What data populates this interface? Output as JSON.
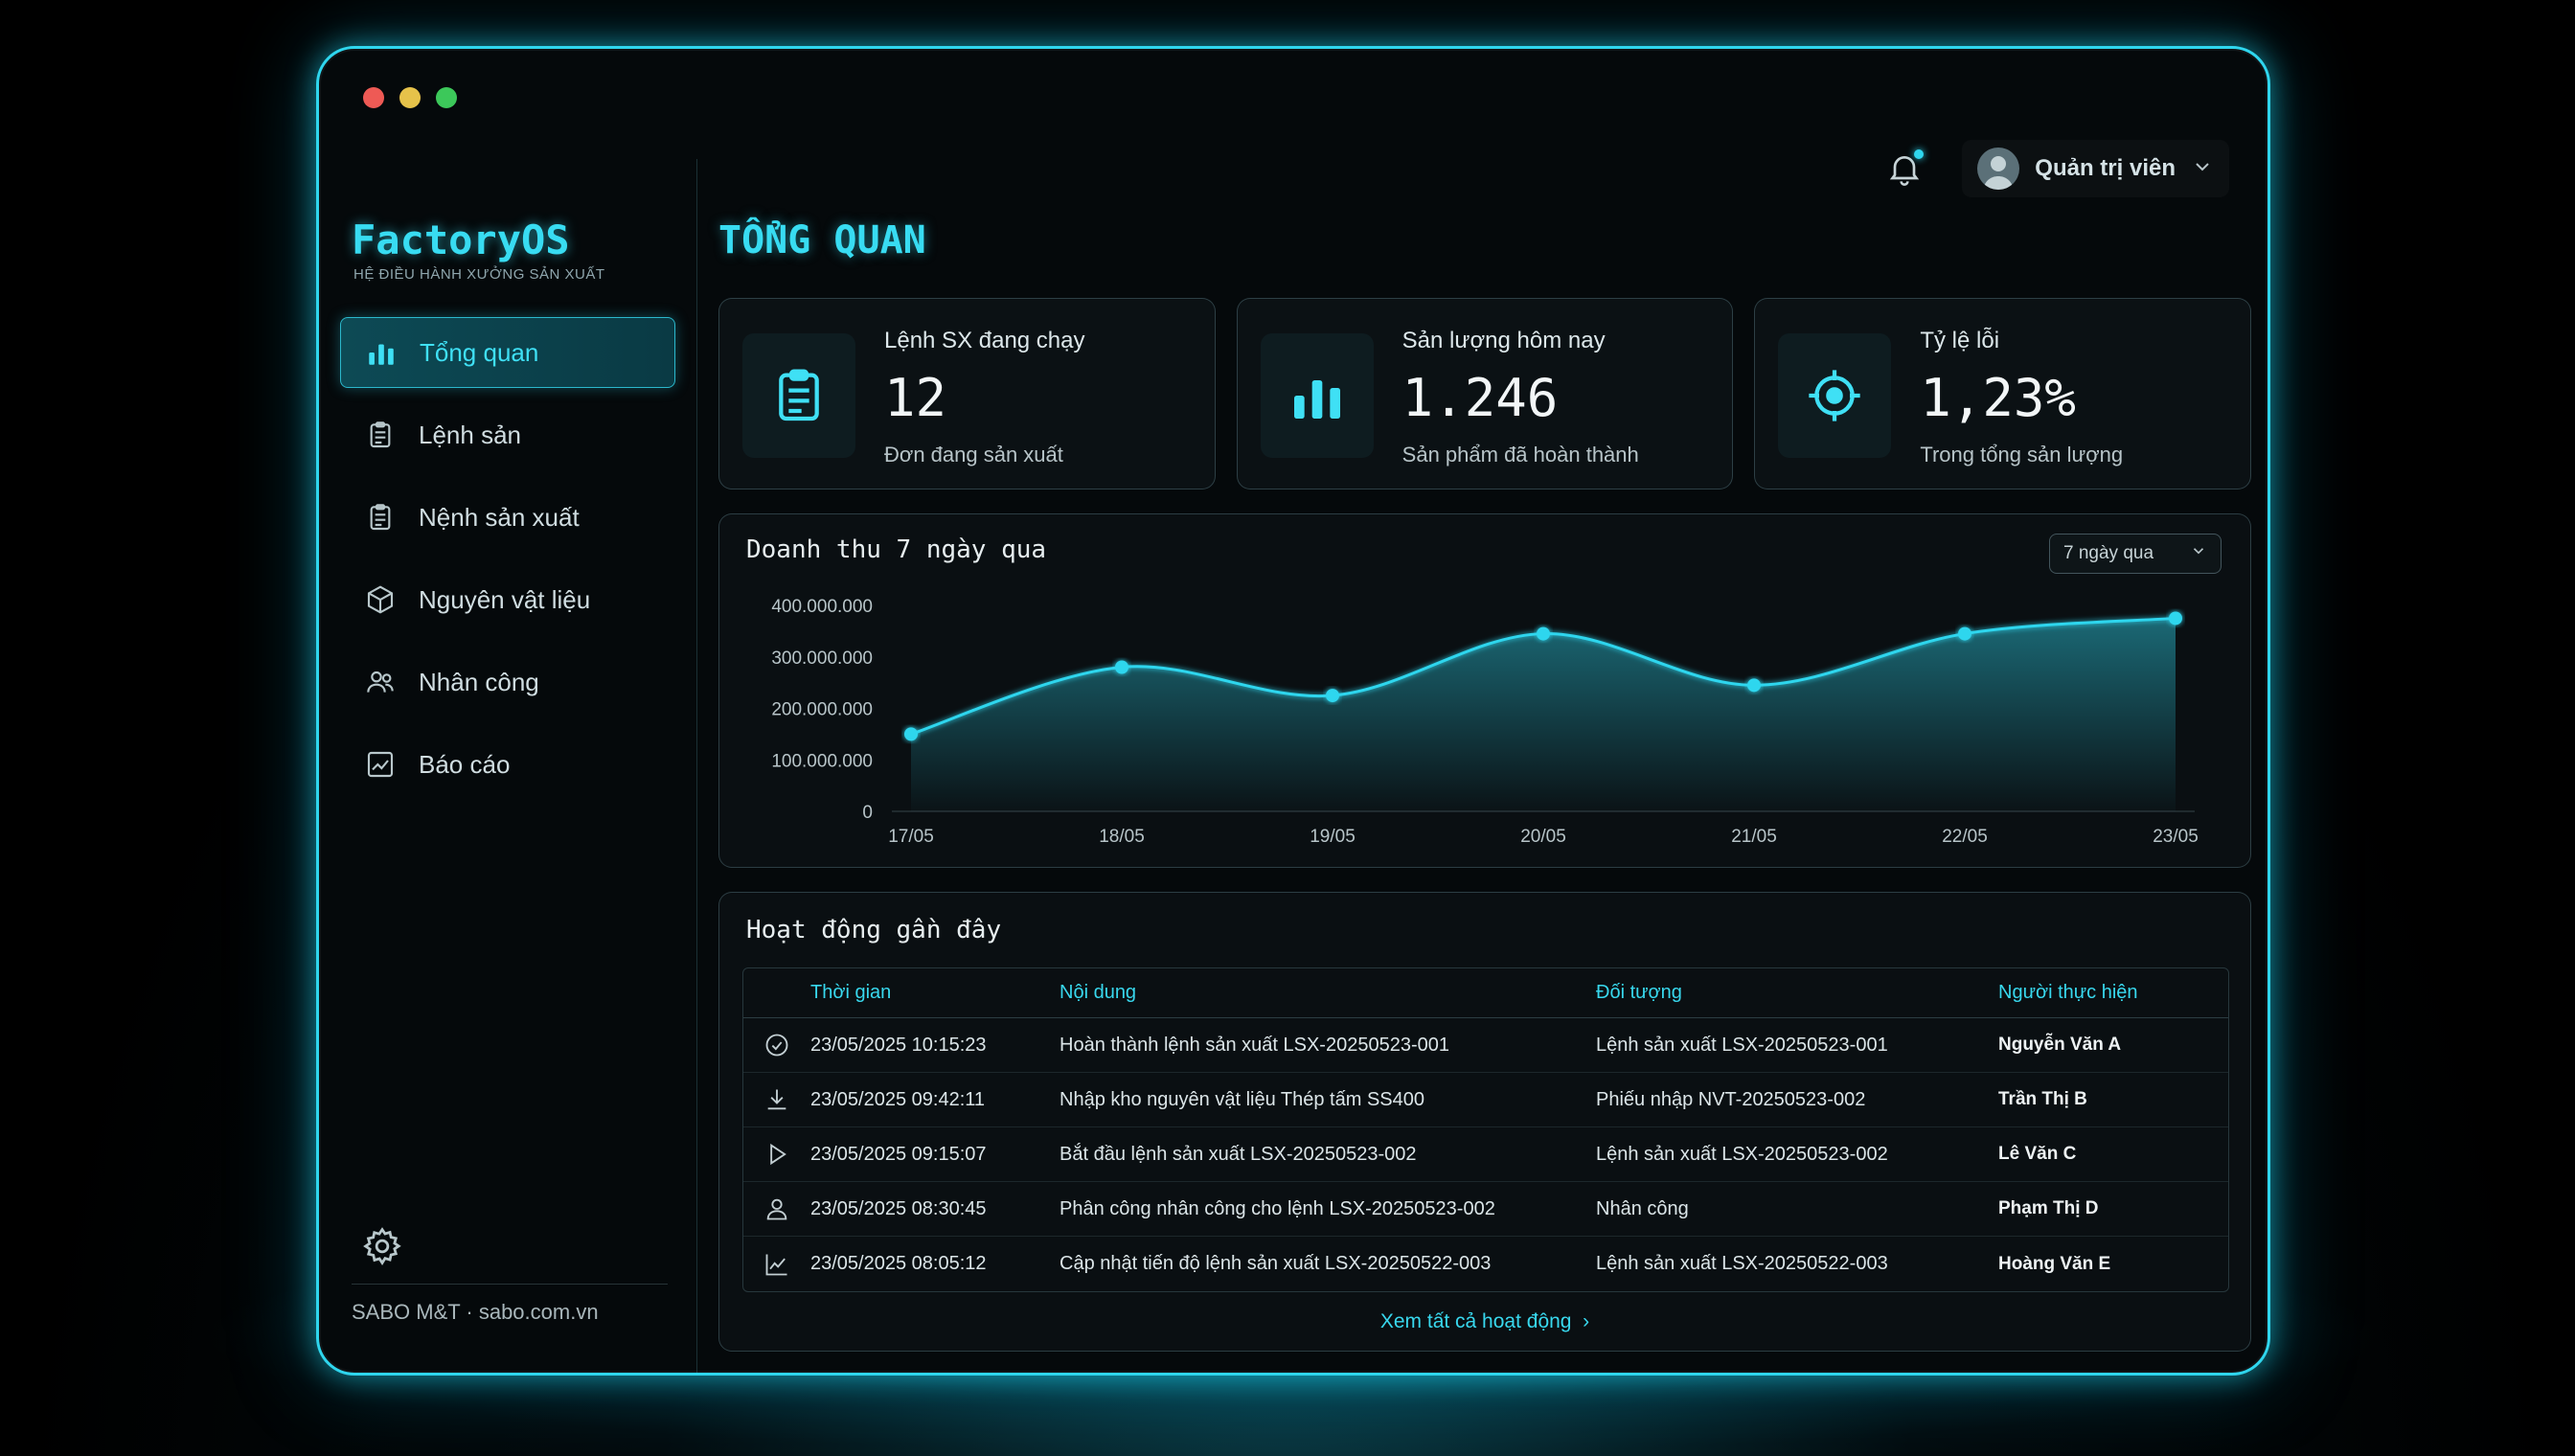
{
  "app": {
    "logo": "FactoryOS",
    "logo_subtitle": "HỆ ĐIỀU HÀNH XƯỞNG SẢN XUẤT",
    "footer": "SABO M&T · sabo.com.vn"
  },
  "topbar": {
    "user_name": "Quản trị viên"
  },
  "sidebar": {
    "items": [
      {
        "label": "Tổng quan",
        "icon": "bar-chart-icon",
        "active": true
      },
      {
        "label": "Lệnh sản",
        "icon": "clipboard-icon",
        "active": false
      },
      {
        "label": "Nệnh sản xuất",
        "icon": "clipboard-icon",
        "active": false
      },
      {
        "label": "Nguyên vật liệu",
        "icon": "cube-icon",
        "active": false
      },
      {
        "label": "Nhân công",
        "icon": "users-icon",
        "active": false
      },
      {
        "label": "Báo cáo",
        "icon": "report-icon",
        "active": false
      }
    ]
  },
  "page": {
    "title": "TỔNG QUAN"
  },
  "cards": [
    {
      "label": "Lệnh SX đang chạy",
      "value": "12",
      "sub": "Đơn đang sản xuất",
      "icon": "clipboard-icon"
    },
    {
      "label": "Sản lượng hôm nay",
      "value": "1.246",
      "sub": "Sản phẩm đã hoàn thành",
      "icon": "bar-chart-icon"
    },
    {
      "label": "Tỷ lệ lỗi",
      "value": "1,23%",
      "sub": "Trong tổng sản lượng",
      "icon": "target-icon"
    }
  ],
  "chart": {
    "title": "Doanh thu 7 ngày qua",
    "range_select": "7 ngày qua"
  },
  "chart_data": {
    "type": "area",
    "title": "Doanh thu 7 ngày qua",
    "xlabel": "",
    "ylabel": "",
    "categories": [
      "17/05",
      "18/05",
      "19/05",
      "20/05",
      "21/05",
      "22/05",
      "23/05"
    ],
    "values": [
      150000000,
      280000000,
      225000000,
      345000000,
      245000000,
      345000000,
      375000000
    ],
    "ylim": [
      0,
      400000000
    ],
    "yticks": [
      0,
      100000000,
      200000000,
      300000000,
      400000000
    ],
    "ytick_labels": [
      "0",
      "100.000.000",
      "200.000.000",
      "300.000.000",
      "400.000.000"
    ],
    "grid": false,
    "color": "#2fd6ee"
  },
  "activity": {
    "title": "Hoạt động gần đây",
    "columns": [
      "Thời gian",
      "Nội dung",
      "Đối tượng",
      "Người thực hiện"
    ],
    "rows": [
      {
        "icon": "check-circle-icon",
        "time": "23/05/2025 10:15:23",
        "content": "Hoàn thành lệnh sản xuất LSX-20250523-001",
        "target": "Lệnh sản xuất LSX-20250523-001",
        "user": "Nguyễn Văn A"
      },
      {
        "icon": "download-icon",
        "time": "23/05/2025 09:42:11",
        "content": "Nhập kho nguyên vật liệu Thép tấm SS400",
        "target": "Phiếu nhập NVT-20250523-002",
        "user": "Trần Thị B"
      },
      {
        "icon": "play-icon",
        "time": "23/05/2025 09:15:07",
        "content": "Bắt đầu lệnh sản xuất LSX-20250523-002",
        "target": "Lệnh sản xuất LSX-20250523-002",
        "user": "Lê Văn C"
      },
      {
        "icon": "person-icon",
        "time": "23/05/2025 08:30:45",
        "content": "Phân công nhân công cho lệnh LSX-20250523-002",
        "target": "Nhân công",
        "user": "Phạm Thị D"
      },
      {
        "icon": "trend-icon",
        "time": "23/05/2025 08:05:12",
        "content": "Cập nhật tiến độ lệnh sản xuất LSX-20250522-003",
        "target": "Lệnh sản xuất LSX-20250522-003",
        "user": "Hoàng Văn E"
      }
    ],
    "view_all": "Xem tất cả hoạt động"
  }
}
